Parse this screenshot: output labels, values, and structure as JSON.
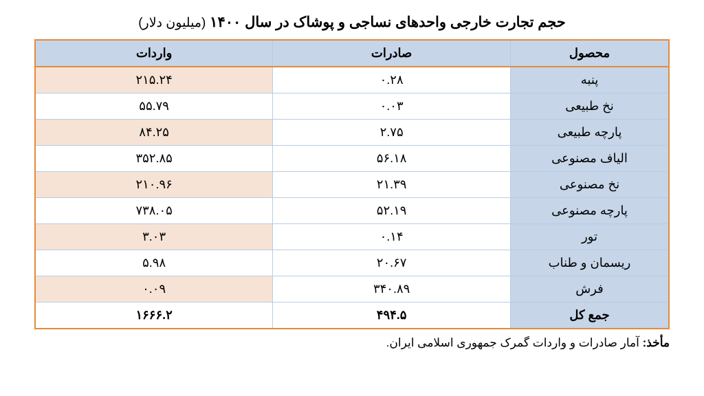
{
  "title_main": "حجم تجارت خارجی واحدهای نساجی و پوشاک در سال ۱۴۰۰",
  "title_unit": "(میلیون دلار)",
  "columns": {
    "product": "محصول",
    "exports": "صادرات",
    "imports": "واردات"
  },
  "rows": [
    {
      "product": "پنبه",
      "exports": "۰.۲۸",
      "imports": "۲۱۵.۲۴"
    },
    {
      "product": "نخ طبیعی",
      "exports": "۰.۰۳",
      "imports": "۵۵.۷۹"
    },
    {
      "product": "پارچه طبیعی",
      "exports": "۲.۷۵",
      "imports": "۸۴.۲۵"
    },
    {
      "product": "الیاف مصنوعی",
      "exports": "۵۶.۱۸",
      "imports": "۳۵۲.۸۵"
    },
    {
      "product": "نخ مصنوعی",
      "exports": "۲۱.۳۹",
      "imports": "۲۱۰.۹۶"
    },
    {
      "product": "پارچه مصنوعی",
      "exports": "۵۲.۱۹",
      "imports": "۷۳۸.۰۵"
    },
    {
      "product": "تور",
      "exports": "۰.۱۴",
      "imports": "۳.۰۳"
    },
    {
      "product": "ریسمان و طناب",
      "exports": "۲۰.۶۷",
      "imports": "۵.۹۸"
    },
    {
      "product": "فرش",
      "exports": "۳۴۰.۸۹",
      "imports": "۰.۰۹"
    }
  ],
  "total": {
    "label": "جمع کل",
    "exports": "۴۹۴.۵",
    "imports": "۱۶۶۶.۲"
  },
  "source_label": "مأخذ:",
  "source_text": "آمار صادرات و واردات گمرک جمهوری اسلامی ایران.",
  "colors": {
    "header_bg": "#c6d5e8",
    "product_bg": "#c6d5e8",
    "imports_odd_bg": "#f7e3d5",
    "border_outer": "#e38b3c",
    "border_inner": "#b8cce4",
    "background": "#ffffff"
  },
  "font_sizes": {
    "title": 21,
    "cell": 18,
    "source": 17
  }
}
